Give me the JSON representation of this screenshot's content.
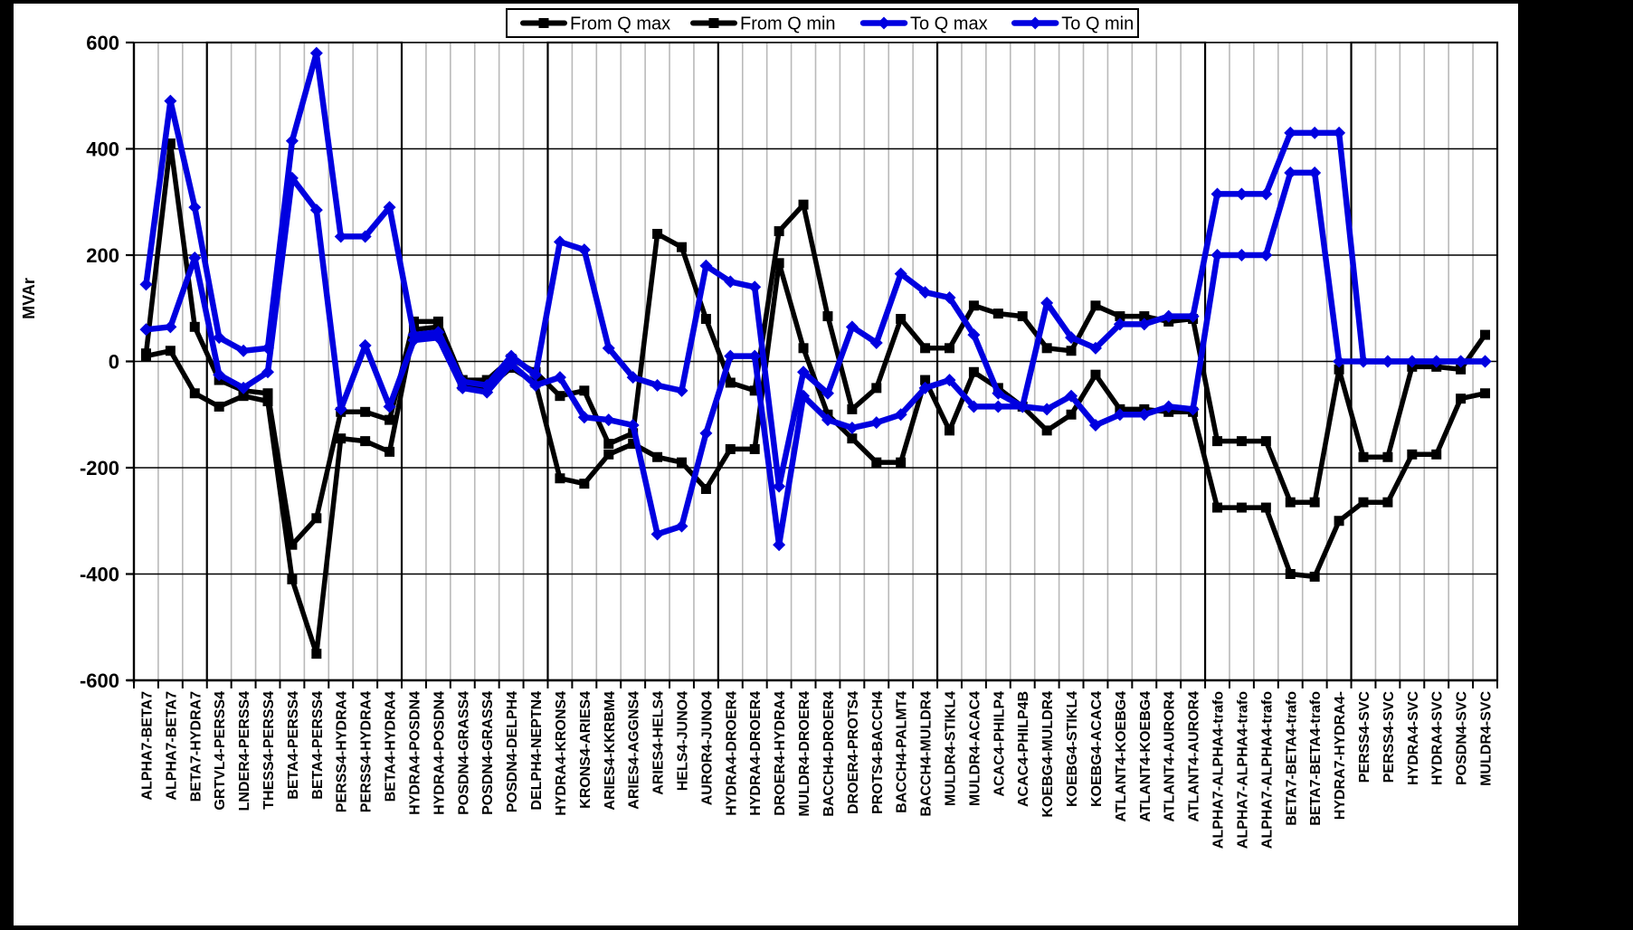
{
  "chart_data": {
    "type": "line",
    "title": "",
    "ylabel": "MVAr",
    "ylim": [
      -600,
      600
    ],
    "yticks": [
      600,
      400,
      200,
      0,
      -200,
      -400,
      -600
    ],
    "grid": {
      "vertical": "per-category",
      "horizontal": "every-200"
    },
    "legend_position": "top-center",
    "legend": [
      "From Q max",
      "From Q min",
      "To Q max",
      "To Q min"
    ],
    "categories": [
      "ALPHA7-BETA7",
      "ALPHA7-BETA7",
      "BETA7-HYDRA7",
      "GRTVL4-PERSS4",
      "LNDER4-PERSS4",
      "THESS4-PERSS4",
      "BETA4-PERSS4",
      "BETA4-PERSS4",
      "PERSS4-HYDRA4",
      "PERSS4-HYDRA4",
      "BETA4-HYDRA4",
      "HYDRA4-POSDN4",
      "HYDRA4-POSDN4",
      "POSDN4-GRASS4",
      "POSDN4-GRASS4",
      "POSDN4-DELPH4",
      "DELPH4-NEPTN4",
      "HYDRA4-KRONS4",
      "KRONS4-ARIES4",
      "ARIES4-KKRBM4",
      "ARIES4-AGGNS4",
      "ARIES4-HELS4",
      "HELS4-JUNO4",
      "AUROR4-JUNO4",
      "HYDRA4-DROER4",
      "HYDRA4-DROER4",
      "DROER4-HYDRA4",
      "MULDR4-DROER4",
      "BACCH4-DROER4",
      "DROER4-PROTS4",
      "PROTS4-BACCH4",
      "BACCH4-PALMT4",
      "BACCH4-MULDR4",
      "MULDR4-STIKL4",
      "MULDR4-ACAC4",
      "ACAC4-PHILP4",
      "ACAC4-PHILP4B",
      "KOEBG4-MULDR4",
      "KOEBG4-STIKL4",
      "KOEBG4-ACAC4",
      "ATLANT4-KOEBG4",
      "ATLANT4-KOEBG4",
      "ATLANT4-AUROR4",
      "ATLANT4-AUROR4",
      "ALPHA7-ALPHA4-trafo",
      "ALPHA7-ALPHA4-trafo",
      "ALPHA7-ALPHA4-trafo",
      "BETA7-BETA4-trafo",
      "BETA7-BETA4-trafo",
      "HYDRA7-HYDRA4-",
      "PERSS4-SVC",
      "PERSS4-SVC",
      "HYDRA4-SVC",
      "HYDRA4-SVC",
      "POSDN4-SVC",
      "MULDR4-SVC"
    ],
    "series": [
      {
        "name": "From Q max",
        "color": "#000000",
        "marker": "square",
        "values": [
          15,
          410,
          65,
          -35,
          -55,
          -60,
          -345,
          -295,
          -95,
          -95,
          -110,
          75,
          75,
          -35,
          -35,
          5,
          -20,
          -65,
          -55,
          -155,
          -135,
          240,
          215,
          80,
          -40,
          -55,
          245,
          295,
          85,
          -90,
          -50,
          80,
          25,
          25,
          105,
          90,
          85,
          25,
          20,
          105,
          85,
          85,
          75,
          80,
          -150,
          -150,
          -150,
          -265,
          -265,
          -15,
          -180,
          -180,
          -10,
          -10,
          -15,
          50
        ]
      },
      {
        "name": "From Q min",
        "color": "#000000",
        "marker": "square",
        "values": [
          10,
          20,
          -60,
          -85,
          -65,
          -75,
          -410,
          -550,
          -145,
          -150,
          -170,
          60,
          65,
          -45,
          -50,
          -12,
          -40,
          -220,
          -230,
          -175,
          -155,
          -180,
          -190,
          -240,
          -165,
          -165,
          185,
          25,
          -100,
          -145,
          -190,
          -190,
          -35,
          -130,
          -20,
          -50,
          -85,
          -130,
          -100,
          -25,
          -90,
          -90,
          -95,
          -95,
          -275,
          -275,
          -275,
          -400,
          -405,
          -300,
          -265,
          -265,
          -175,
          -175,
          -70,
          -60
        ]
      },
      {
        "name": "To Q max",
        "color": "#0000e0",
        "marker": "diamond",
        "values": [
          145,
          490,
          290,
          45,
          20,
          25,
          415,
          580,
          235,
          235,
          290,
          50,
          55,
          -38,
          -45,
          10,
          -25,
          225,
          210,
          25,
          -30,
          -45,
          -55,
          180,
          150,
          140,
          -235,
          -20,
          -60,
          65,
          35,
          165,
          130,
          120,
          50,
          -60,
          -85,
          110,
          45,
          25,
          70,
          70,
          85,
          85,
          315,
          315,
          315,
          430,
          430,
          430,
          0,
          0,
          0,
          0,
          0,
          0
        ]
      },
      {
        "name": "To Q min",
        "color": "#0000e0",
        "marker": "diamond",
        "values": [
          60,
          65,
          195,
          -25,
          -50,
          -20,
          345,
          285,
          -90,
          30,
          -85,
          40,
          45,
          -50,
          -58,
          -5,
          -45,
          -30,
          -105,
          -110,
          -120,
          -325,
          -310,
          -135,
          10,
          10,
          -345,
          -65,
          -110,
          -125,
          -115,
          -100,
          -50,
          -35,
          -85,
          -85,
          -85,
          -90,
          -65,
          -120,
          -100,
          -100,
          -85,
          -90,
          200,
          200,
          200,
          355,
          355,
          0,
          0,
          0,
          0,
          0,
          0,
          0
        ]
      }
    ],
    "group_boxes": [
      [
        4,
        11
      ],
      [
        18,
        24
      ],
      [
        34,
        44
      ],
      [
        51,
        56
      ]
    ]
  },
  "colors": {
    "background": "#000000",
    "paper": "#ffffff",
    "grid_vertical": "#b9b9b9",
    "grid_horizontal": "#000000",
    "axis": "#000000",
    "series_black": "#000000",
    "series_blue": "#0000e0"
  }
}
